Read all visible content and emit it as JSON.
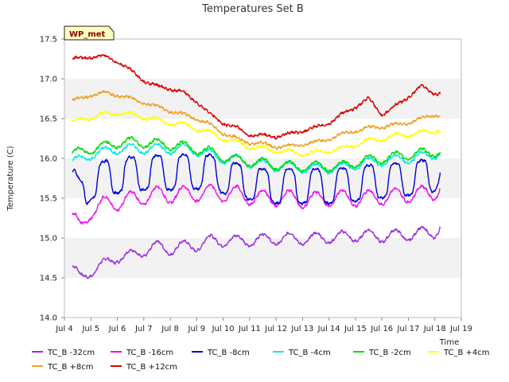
{
  "chart_data": {
    "type": "line",
    "title": "Temperatures Set B",
    "xlabel": "Time",
    "ylabel": "Temperature (C)",
    "badge": "WP_met",
    "xlim": [
      4,
      19
    ],
    "ylim": [
      14.0,
      17.5
    ],
    "yticks": [
      "14.0",
      "14.5",
      "15.0",
      "15.5",
      "16.0",
      "16.5",
      "17.0",
      "17.5"
    ],
    "xticks": [
      "Jul 4",
      "Jul 5",
      "Jul 6",
      "Jul 7",
      "Jul 8",
      "Jul 9",
      "Jul 10",
      "Jul 11",
      "Jul 12",
      "Jul 13",
      "Jul 14",
      "Jul 15",
      "Jul 16",
      "Jul 17",
      "Jul 18",
      "Jul 19"
    ],
    "grid_bands": true,
    "legend_placement": "bottom",
    "x": [
      4.3,
      4.6,
      5.0,
      5.5,
      6.0,
      6.5,
      7.0,
      7.5,
      8.0,
      8.5,
      9.0,
      9.5,
      10.0,
      10.5,
      11.0,
      11.5,
      12.0,
      12.5,
      13.0,
      13.5,
      14.0,
      14.5,
      15.0,
      15.5,
      16.0,
      16.5,
      17.0,
      17.5,
      18.0,
      18.2
    ],
    "series": [
      {
        "name": "TC_B -32cm",
        "color": "#9b30e0",
        "daily_amp": 0.08,
        "values": [
          14.62,
          14.48,
          14.6,
          14.65,
          14.78,
          14.76,
          14.85,
          14.88,
          14.87,
          14.88,
          14.92,
          14.95,
          14.98,
          14.95,
          14.98,
          14.97,
          15.0,
          14.98,
          15.0,
          14.98,
          15.02,
          15.0,
          15.04,
          15.02,
          15.03,
          15.02,
          15.05,
          15.05,
          15.08,
          15.15
        ]
      },
      {
        "name": "TC_B -16cm",
        "color": "#ee11ee",
        "daily_amp": 0.1,
        "values": [
          15.28,
          15.1,
          15.35,
          15.42,
          15.45,
          15.48,
          15.52,
          15.55,
          15.54,
          15.55,
          15.56,
          15.57,
          15.56,
          15.55,
          15.52,
          15.5,
          15.5,
          15.5,
          15.48,
          15.48,
          15.5,
          15.5,
          15.5,
          15.5,
          15.52,
          15.52,
          15.55,
          15.55,
          15.58,
          15.64
        ]
      },
      {
        "name": "TC_B -8cm",
        "color": "#0000dd",
        "daily_amp": 0.22,
        "values": [
          15.7,
          15.5,
          15.7,
          15.75,
          15.78,
          15.8,
          15.82,
          15.82,
          15.82,
          15.83,
          15.83,
          15.83,
          15.78,
          15.72,
          15.7,
          15.65,
          15.65,
          15.65,
          15.65,
          15.65,
          15.65,
          15.66,
          15.68,
          15.7,
          15.72,
          15.72,
          15.75,
          15.76,
          15.8,
          15.94
        ]
      },
      {
        "name": "TC_B -4cm",
        "color": "#00e8f0",
        "daily_amp": 0.06,
        "values": [
          15.95,
          15.98,
          16.05,
          16.08,
          16.12,
          16.12,
          16.12,
          16.12,
          16.12,
          16.12,
          16.1,
          16.05,
          16.0,
          15.98,
          15.95,
          15.92,
          15.9,
          15.9,
          15.88,
          15.87,
          15.88,
          15.88,
          15.92,
          15.95,
          15.97,
          15.98,
          16.0,
          16.02,
          16.05,
          16.08
        ]
      },
      {
        "name": "TC_B -2cm",
        "color": "#00dd00",
        "daily_amp": 0.06,
        "values": [
          16.05,
          16.08,
          16.12,
          16.15,
          16.2,
          16.2,
          16.2,
          16.18,
          16.17,
          16.15,
          16.12,
          16.08,
          16.02,
          15.98,
          15.96,
          15.94,
          15.92,
          15.9,
          15.9,
          15.9,
          15.9,
          15.9,
          15.95,
          15.98,
          16.0,
          16.02,
          16.05,
          16.06,
          16.08,
          16.1
        ]
      },
      {
        "name": "TC_B +4cm",
        "color": "#ffff00",
        "daily_amp": 0.03,
        "values": [
          16.45,
          16.48,
          16.52,
          16.55,
          16.58,
          16.55,
          16.52,
          16.48,
          16.45,
          16.42,
          16.38,
          16.32,
          16.25,
          16.2,
          16.15,
          16.12,
          16.1,
          16.08,
          16.06,
          16.07,
          16.1,
          16.12,
          16.18,
          16.22,
          16.25,
          16.28,
          16.3,
          16.32,
          16.35,
          16.37
        ]
      },
      {
        "name": "TC_B +8cm",
        "color": "#f0a020",
        "daily_amp": 0.02,
        "values": [
          16.72,
          16.75,
          16.8,
          16.82,
          16.8,
          16.75,
          16.7,
          16.65,
          16.6,
          16.55,
          16.5,
          16.42,
          16.32,
          16.25,
          16.2,
          16.18,
          16.15,
          16.15,
          16.18,
          16.2,
          16.25,
          16.3,
          16.35,
          16.38,
          16.4,
          16.42,
          16.45,
          16.5,
          16.55,
          16.54
        ]
      },
      {
        "name": "TC_B +12cm",
        "color": "#dd0000",
        "daily_amp": 0.02,
        "values": [
          17.25,
          17.25,
          17.28,
          17.28,
          17.22,
          17.1,
          16.98,
          16.9,
          16.88,
          16.82,
          16.72,
          16.55,
          16.45,
          16.38,
          16.3,
          16.28,
          16.28,
          16.3,
          16.35,
          16.38,
          16.45,
          16.55,
          16.65,
          16.75,
          16.55,
          16.65,
          16.78,
          16.9,
          16.82,
          16.82
        ]
      }
    ]
  }
}
